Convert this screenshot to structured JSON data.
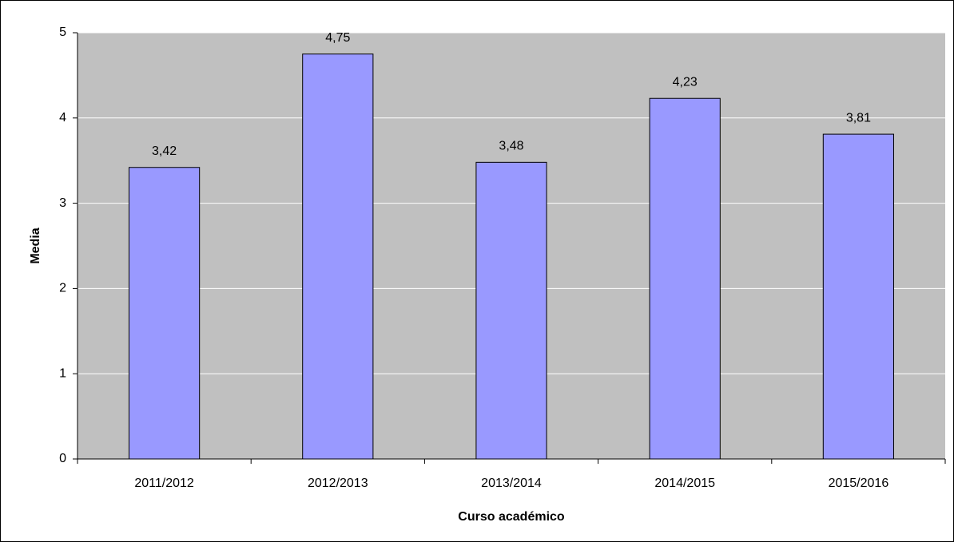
{
  "chart_data": {
    "type": "bar",
    "categories": [
      "2011/2012",
      "2012/2013",
      "2013/2014",
      "2014/2015",
      "2015/2016"
    ],
    "values": [
      3.42,
      4.75,
      3.48,
      4.23,
      3.81
    ],
    "value_labels": [
      "3,42",
      "4,75",
      "3,48",
      "4,23",
      "3,81"
    ],
    "color": "#9999ff",
    "xlabel": "Curso académico",
    "ylabel": "Media",
    "ylim": [
      0,
      5
    ],
    "yticks": [
      0,
      1,
      2,
      3,
      4,
      5
    ],
    "grid": true
  }
}
